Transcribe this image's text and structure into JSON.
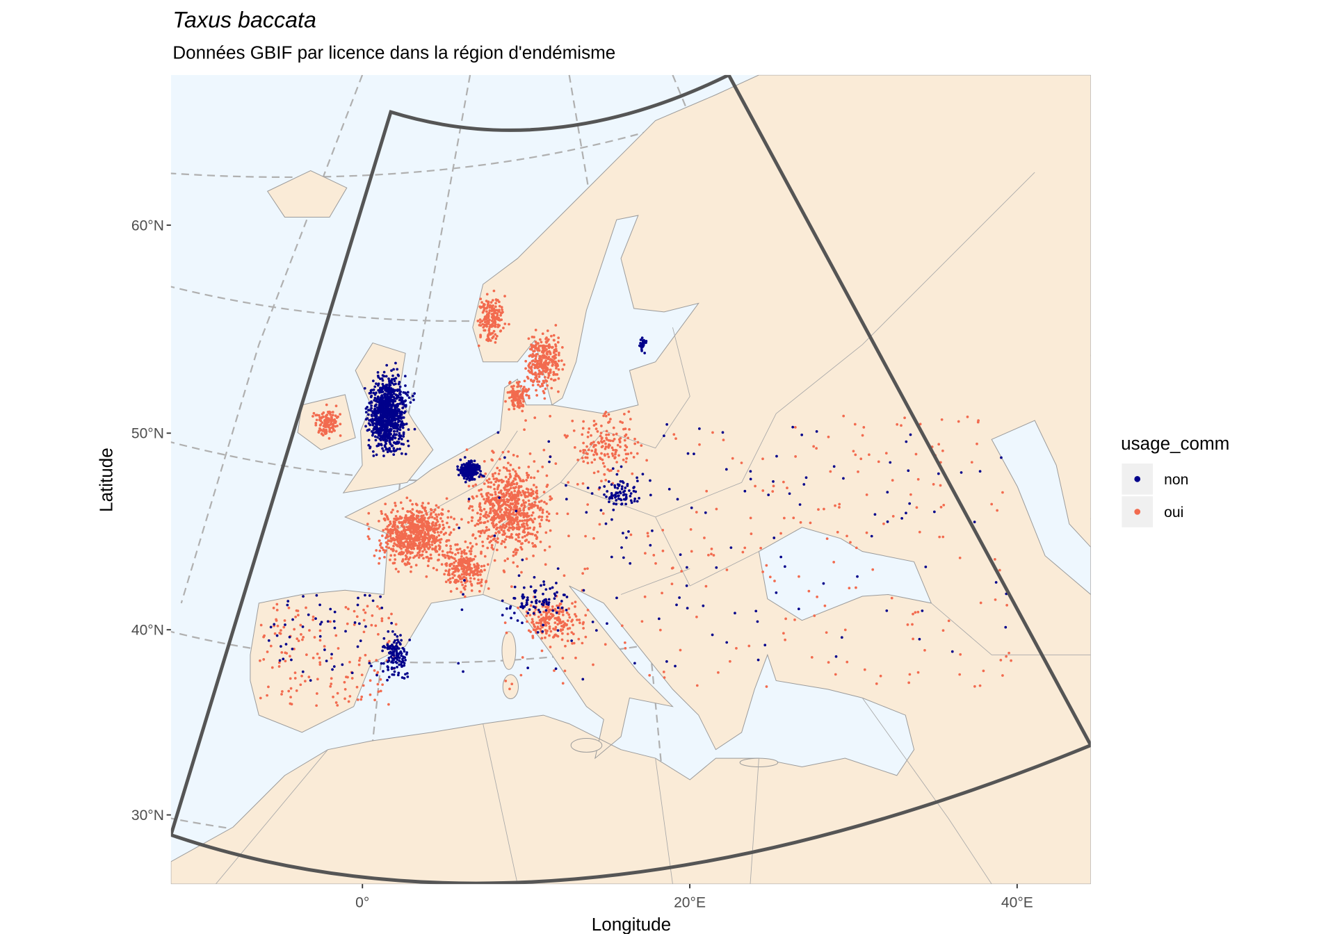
{
  "chart_data": {
    "type": "map",
    "title": "Taxus baccata",
    "subtitle": "Données GBIF par licence dans la région d'endémisme",
    "x_label": "Longitude",
    "y_label": "Latitude",
    "legend_title": "usage_comm",
    "series": [
      {
        "name": "non",
        "color": "#00008b"
      },
      {
        "name": "oui",
        "color": "#f26b4f"
      }
    ],
    "xlim": [
      -11.7,
      44.5
    ],
    "ylim": [
      26.1,
      66.9
    ],
    "xticks": [
      {
        "value": 0,
        "label": "0°"
      },
      {
        "value": 20,
        "label": "20°E"
      },
      {
        "value": 40,
        "label": "40°E"
      }
    ],
    "yticks": [
      {
        "value": 30,
        "label": "30°N"
      },
      {
        "value": 40,
        "label": "40°N"
      },
      {
        "value": 50,
        "label": "50°N"
      },
      {
        "value": 60,
        "label": "60°N"
      }
    ]
  }
}
